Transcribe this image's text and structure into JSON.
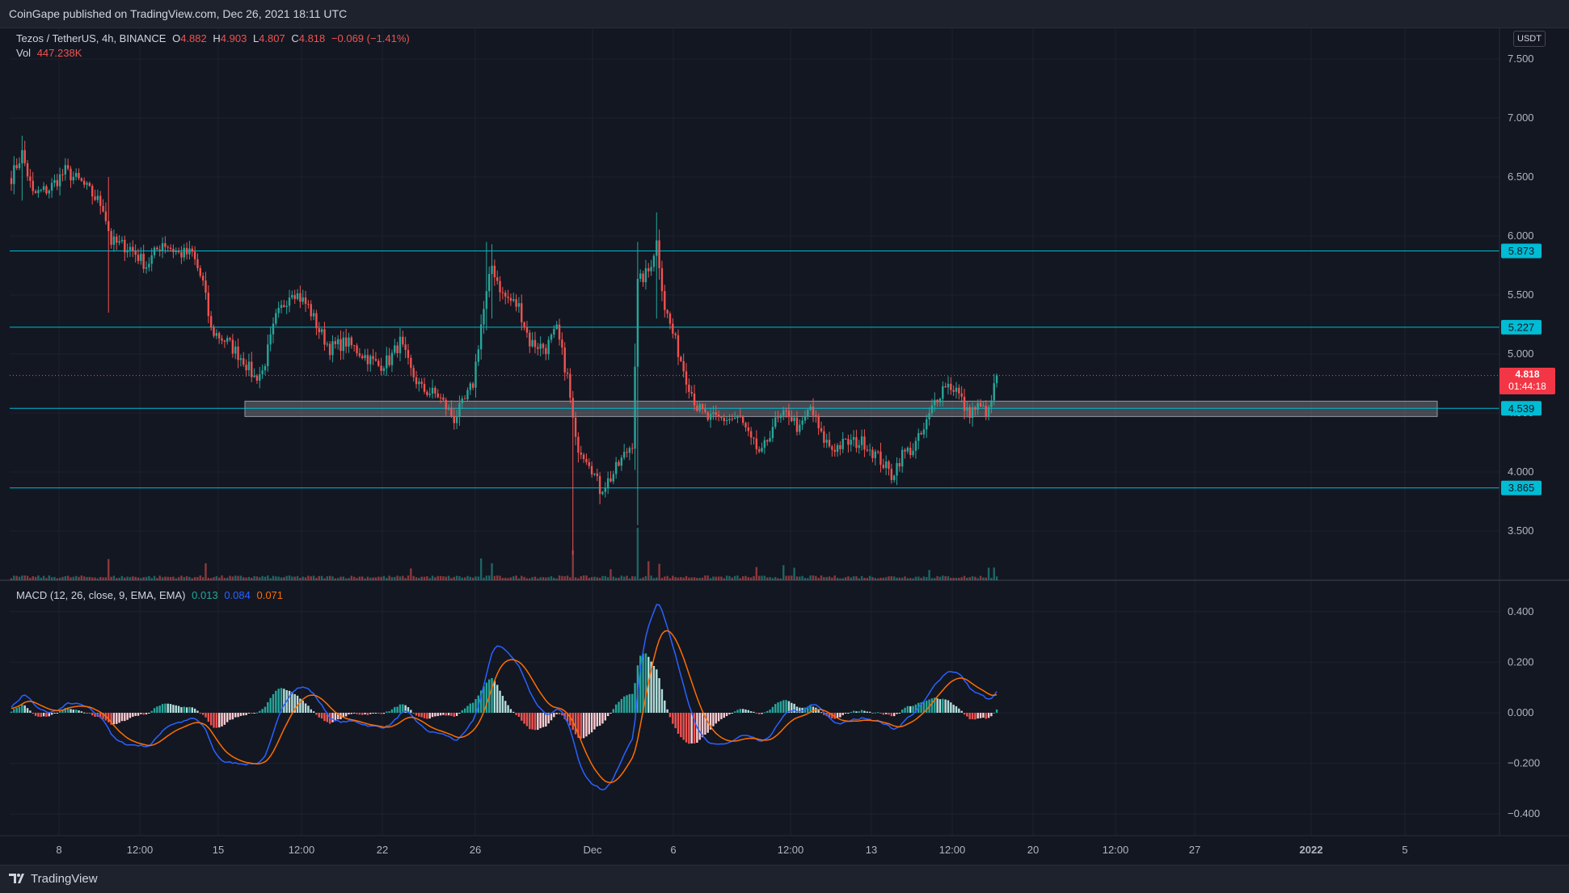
{
  "header": {
    "publish_text": "CoinGape published on TradingView.com, Dec 26, 2021 18:11 UTC"
  },
  "footer": {
    "brand": "TradingView"
  },
  "legend": {
    "symbol": "Tezos / TetherUS, 4h, BINANCE",
    "open_label": "O",
    "open": "4.882",
    "high_label": "H",
    "high": "4.903",
    "low_label": "L",
    "low": "4.807",
    "close_label": "C",
    "close": "4.818",
    "change": "−0.069 (−1.41%)",
    "vol_label": "Vol",
    "vol": "447.238K"
  },
  "macd_legend": {
    "label": "MACD (12, 26, close, 9, EMA, EMA)",
    "hist": "0.013",
    "macd": "0.084",
    "signal": "0.071"
  },
  "currency": "USDT",
  "current_price": {
    "price": "4.818",
    "countdown": "01:44:18"
  },
  "colors": {
    "bg": "#131722",
    "up": "#26a69a",
    "down": "#ef5350",
    "level": "#00bcd4",
    "macd": "#2962ff",
    "signal": "#ff6d00"
  },
  "chart_data": [
    {
      "type": "candlestick",
      "title": "Tezos / TetherUS, 4h, BINANCE",
      "ylim": [
        3.1,
        7.7
      ],
      "price_ticks": [
        "7.500",
        "7.000",
        "6.500",
        "6.000",
        "5.500",
        "5.000",
        "4.500",
        "4.000",
        "3.500"
      ],
      "x_ticks": [
        "8",
        "12:00",
        "15",
        "12:00",
        "22",
        "26",
        "Dec",
        "6",
        "12:00",
        "13",
        "12:00",
        "20",
        "12:00",
        "27",
        "2022",
        "5"
      ],
      "levels": [
        {
          "value": 5.873,
          "label": "5.873"
        },
        {
          "value": 5.227,
          "label": "5.227"
        },
        {
          "value": 4.539,
          "label": "4.539"
        },
        {
          "value": 3.865,
          "label": "3.865"
        }
      ],
      "demand_zone": [
        4.47,
        4.6
      ],
      "current_price": 4.818,
      "anchors": [
        [
          0,
          6.5
        ],
        [
          4,
          6.7
        ],
        [
          8,
          6.35
        ],
        [
          14,
          6.4
        ],
        [
          20,
          6.55
        ],
        [
          26,
          6.45
        ],
        [
          30,
          6.35
        ],
        [
          34,
          6.25
        ],
        [
          37,
          5.95
        ],
        [
          44,
          5.9
        ],
        [
          50,
          5.75
        ],
        [
          56,
          5.95
        ],
        [
          62,
          5.85
        ],
        [
          67,
          5.85
        ],
        [
          71,
          5.6
        ],
        [
          74,
          5.2
        ],
        [
          80,
          5.1
        ],
        [
          86,
          4.95
        ],
        [
          90,
          4.8
        ],
        [
          93,
          4.85
        ],
        [
          98,
          5.3
        ],
        [
          104,
          5.55
        ],
        [
          110,
          5.4
        ],
        [
          114,
          5.2
        ],
        [
          118,
          5.05
        ],
        [
          124,
          5.1
        ],
        [
          130,
          5.0
        ],
        [
          136,
          4.9
        ],
        [
          140,
          4.95
        ],
        [
          144,
          5.1
        ],
        [
          148,
          4.85
        ],
        [
          152,
          4.7
        ],
        [
          158,
          4.65
        ],
        [
          164,
          4.45
        ],
        [
          168,
          4.6
        ],
        [
          171,
          4.75
        ],
        [
          174,
          5.25
        ],
        [
          178,
          5.75
        ],
        [
          182,
          5.5
        ],
        [
          188,
          5.4
        ],
        [
          192,
          5.1
        ],
        [
          198,
          5.05
        ],
        [
          202,
          5.2
        ],
        [
          206,
          4.8
        ],
        [
          209,
          4.25
        ],
        [
          214,
          4.1
        ],
        [
          218,
          3.85
        ],
        [
          222,
          3.95
        ],
        [
          226,
          4.1
        ],
        [
          230,
          4.25
        ],
        [
          232,
          5.6
        ],
        [
          236,
          5.7
        ],
        [
          239,
          5.95
        ],
        [
          242,
          5.4
        ],
        [
          246,
          5.1
        ],
        [
          250,
          4.8
        ],
        [
          254,
          4.55
        ],
        [
          258,
          4.45
        ],
        [
          264,
          4.45
        ],
        [
          270,
          4.45
        ],
        [
          274,
          4.25
        ],
        [
          278,
          4.15
        ],
        [
          282,
          4.4
        ],
        [
          288,
          4.5
        ],
        [
          292,
          4.35
        ],
        [
          296,
          4.55
        ],
        [
          300,
          4.3
        ],
        [
          304,
          4.2
        ],
        [
          310,
          4.25
        ],
        [
          316,
          4.25
        ],
        [
          322,
          4.1
        ],
        [
          326,
          3.97
        ],
        [
          330,
          4.15
        ],
        [
          334,
          4.2
        ],
        [
          338,
          4.35
        ],
        [
          342,
          4.6
        ],
        [
          346,
          4.75
        ],
        [
          350,
          4.7
        ],
        [
          354,
          4.5
        ],
        [
          358,
          4.55
        ],
        [
          362,
          4.5
        ],
        [
          365,
          4.82
        ]
      ],
      "volume_spikes": {
        "36": 2.8,
        "72": 2.3,
        "148": 1.6,
        "174": 3.0,
        "178": 2.4,
        "208": 4.5,
        "222": 1.5,
        "232": 8.0,
        "236": 2.6,
        "240": 2.4,
        "276": 1.4,
        "286": 1.7,
        "290": 1.6,
        "340": 1.3,
        "362": 1.6,
        "364": 1.5
      },
      "volume_base": 0.3
    },
    {
      "type": "macd",
      "series": [
        {
          "name": "MACD"
        },
        {
          "name": "Signal"
        },
        {
          "name": "Histogram"
        }
      ],
      "ylim": [
        -0.48,
        0.5
      ],
      "ticks": [
        "0.400",
        "0.200",
        "0.000",
        "−0.200",
        "−0.400"
      ],
      "last": {
        "macd": 0.084,
        "signal": 0.071,
        "hist": 0.013
      }
    }
  ]
}
